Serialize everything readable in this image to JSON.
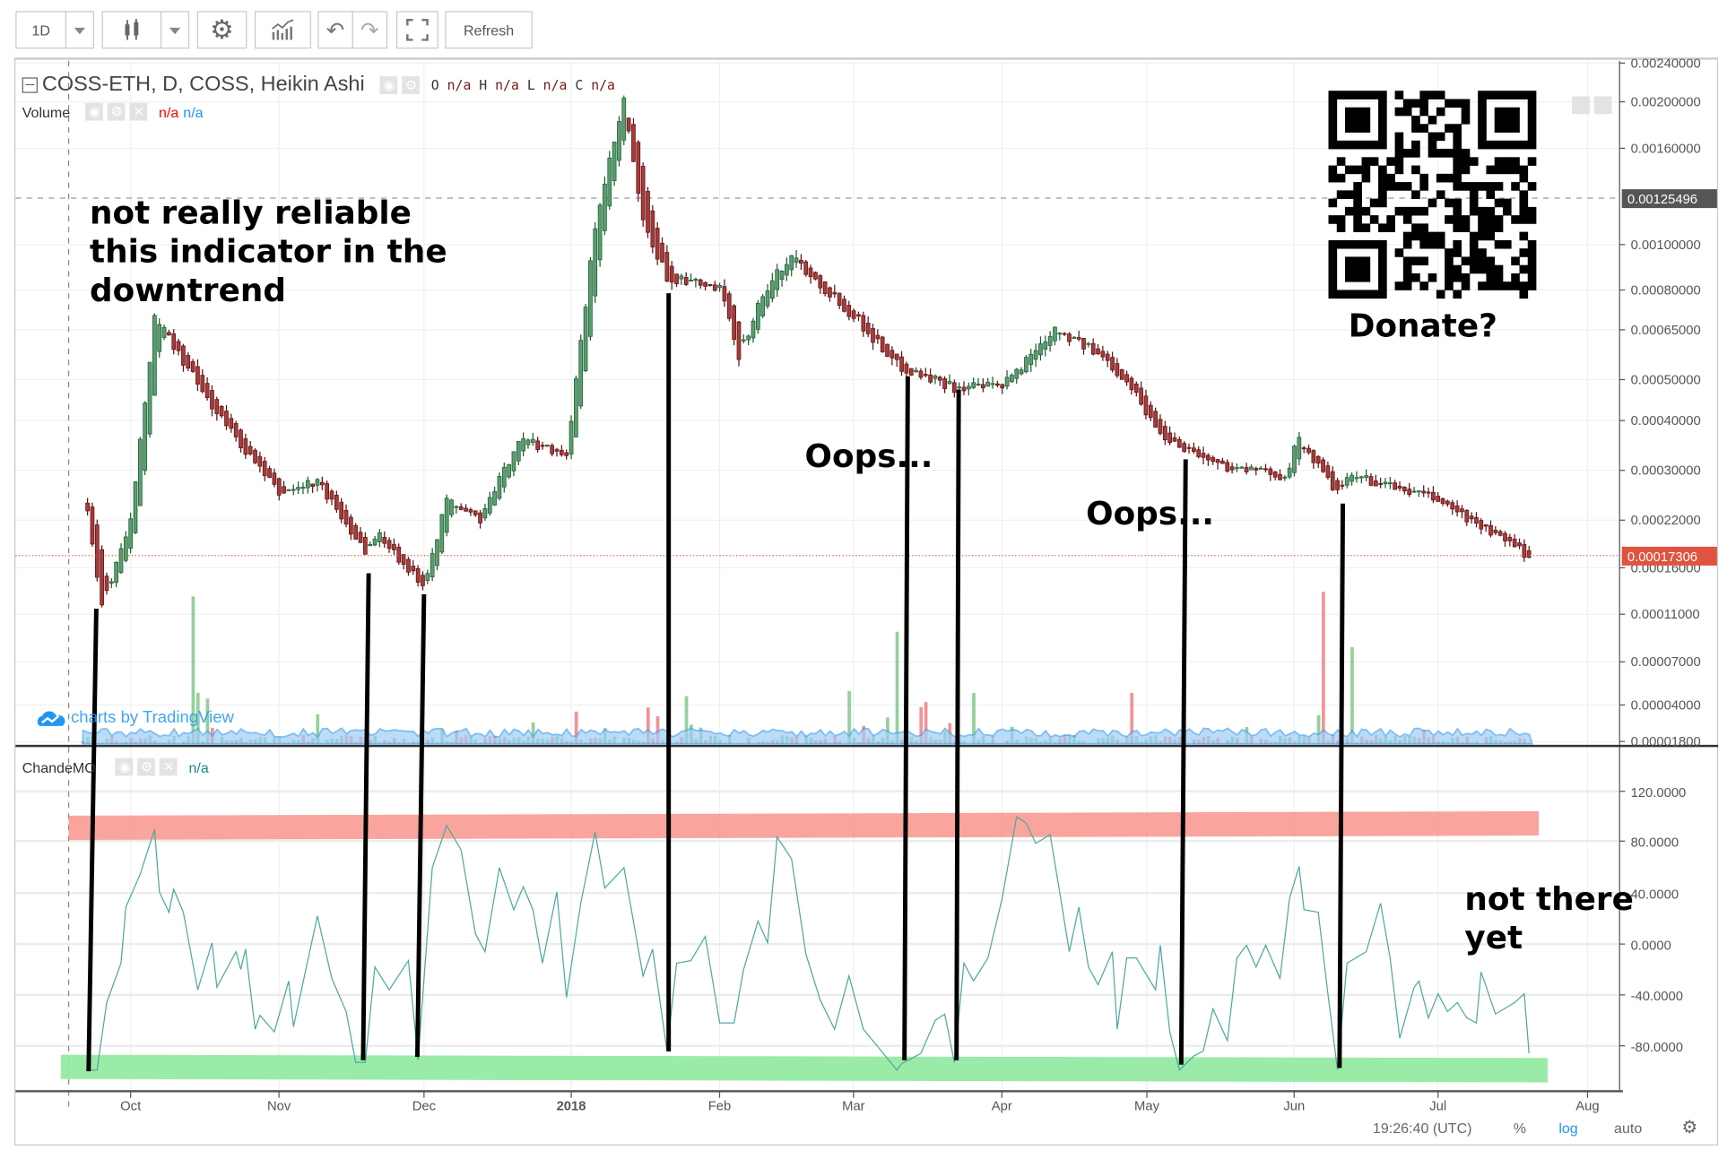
{
  "toolbar": {
    "interval": "1D",
    "refresh_label": "Refresh",
    "icons": [
      "chevron-down-icon",
      "candles-icon",
      "chevron-down-icon",
      "gear-icon",
      "indicators-icon",
      "undo-icon",
      "redo-icon",
      "fullscreen-icon"
    ]
  },
  "legend": {
    "main_title": "COSS-ETH, D, COSS, Heikin Ashi",
    "ohlc": [
      {
        "k": "O",
        "v": "n/a"
      },
      {
        "k": "H",
        "v": "n/a"
      },
      {
        "k": "L",
        "v": "n/a"
      },
      {
        "k": "C",
        "v": "n/a"
      }
    ],
    "volume_label": "Volume",
    "volume_v1": "n/a",
    "volume_v2": "n/a",
    "cmo_label": "ChandeMO",
    "cmo_value": "n/a"
  },
  "watermark": "charts by TradingView",
  "annotations": {
    "note_1": [
      "not really reliable",
      "this indicator in the",
      "downtrend"
    ],
    "oops_1": "Oops...",
    "oops_2": "Oops...",
    "note_2": [
      "not there",
      "yet"
    ],
    "donate": "Donate?"
  },
  "bottom_bar": {
    "time": "19:26:40 (UTC)",
    "percent": "%",
    "log": "log",
    "auto": "auto"
  },
  "colors": {
    "up": "#5a9e6f",
    "down": "#a83a3a",
    "cmo_line": "#4fa8a0",
    "overbought_band": "#f88e86",
    "oversold_band": "#8fe99f",
    "last_price": "#e0533f",
    "accent": "#2196f3"
  },
  "chart_data": [
    {
      "type": "candlestick",
      "style": "Heikin Ashi",
      "symbol": "COSS-ETH",
      "scale": "log",
      "price_axis": {
        "ticks": [
          "0.00240000",
          "0.00200000",
          "0.00160000",
          "0.00100000",
          "0.00080000",
          "0.00065000",
          "0.00050000",
          "0.00040000",
          "0.00030000",
          "0.00022000",
          "0.00016000",
          "0.00011000",
          "0.00007000",
          "0.00004000",
          "0.00001800"
        ],
        "highlight_price": "0.00125496",
        "last_price": "0.00017306"
      },
      "time_axis": [
        "Oct",
        "Nov",
        "Dec",
        "2018",
        "Feb",
        "Mar",
        "Apr",
        "May",
        "Jun",
        "Jul",
        "Aug"
      ],
      "close": [
        [
          "2017-09-22",
          0.00024
        ],
        [
          "2017-09-25",
          0.00012
        ],
        [
          "2017-10-01",
          0.00022
        ],
        [
          "2017-10-06",
          0.0007
        ],
        [
          "2017-10-09",
          0.00062
        ],
        [
          "2017-10-17",
          0.00045
        ],
        [
          "2017-11-01",
          0.00026
        ],
        [
          "2017-11-09",
          0.00028
        ],
        [
          "2017-11-19",
          0.00018
        ],
        [
          "2017-11-22",
          0.0002
        ],
        [
          "2017-12-01",
          0.00014
        ],
        [
          "2017-12-06",
          0.00025
        ],
        [
          "2017-12-13",
          0.00022
        ],
        [
          "2017-12-21",
          0.00036
        ],
        [
          "2017-12-31",
          0.00033
        ],
        [
          "2018-01-06",
          0.0011
        ],
        [
          "2018-01-12",
          0.002
        ],
        [
          "2018-01-16",
          0.0011
        ],
        [
          "2018-01-21",
          0.00085
        ],
        [
          "2018-02-01",
          0.0008
        ],
        [
          "2018-02-05",
          0.00057
        ],
        [
          "2018-02-10",
          0.00078
        ],
        [
          "2018-02-16",
          0.00095
        ],
        [
          "2018-03-01",
          0.0007
        ],
        [
          "2018-03-10",
          0.00054
        ],
        [
          "2018-03-22",
          0.00048
        ],
        [
          "2018-04-01",
          0.00048
        ],
        [
          "2018-04-12",
          0.00066
        ],
        [
          "2018-04-23",
          0.00055
        ],
        [
          "2018-04-27",
          0.0005
        ],
        [
          "2018-05-04",
          0.00037
        ],
        [
          "2018-05-16",
          0.00031
        ],
        [
          "2018-05-30",
          0.00029
        ],
        [
          "2018-06-02",
          0.00036
        ],
        [
          "2018-06-10",
          0.00026
        ],
        [
          "2018-06-13",
          0.00029
        ],
        [
          "2018-07-01",
          0.00025
        ],
        [
          "2018-07-20",
          0.00017306
        ]
      ]
    },
    {
      "type": "line",
      "name": "ChandeMO",
      "y_ticks": [
        "120.0000",
        "80.0000",
        "40.0000",
        "0.0000",
        "-40.0000",
        "-80.0000"
      ],
      "overbought_band": [
        85,
        100
      ],
      "oversold_band": [
        -110,
        -95
      ],
      "points": [
        [
          "2017-09-22",
          -99
        ],
        [
          "2017-09-24",
          -99
        ],
        [
          "2017-09-26",
          -46
        ],
        [
          "2017-09-29",
          -15
        ],
        [
          "2017-09-30",
          29
        ],
        [
          "2017-10-03",
          55
        ],
        [
          "2017-10-06",
          90
        ],
        [
          "2017-10-07",
          41
        ],
        [
          "2017-10-09",
          25
        ],
        [
          "2017-10-10",
          43
        ],
        [
          "2017-10-12",
          25
        ],
        [
          "2017-10-15",
          -36
        ],
        [
          "2017-10-18",
          1
        ],
        [
          "2017-10-19",
          -34
        ],
        [
          "2017-10-23",
          -6
        ],
        [
          "2017-10-24",
          -20
        ],
        [
          "2017-10-25",
          -4
        ],
        [
          "2017-10-27",
          -67
        ],
        [
          "2017-10-28",
          -56
        ],
        [
          "2017-10-31",
          -69
        ],
        [
          "2017-11-03",
          -29
        ],
        [
          "2017-11-04",
          -65
        ],
        [
          "2017-11-09",
          22
        ],
        [
          "2017-11-12",
          -27
        ],
        [
          "2017-11-15",
          -53
        ],
        [
          "2017-11-17",
          -93
        ],
        [
          "2017-11-19",
          -93
        ],
        [
          "2017-11-21",
          -18
        ],
        [
          "2017-11-24",
          -36
        ],
        [
          "2017-11-28",
          -13
        ],
        [
          "2017-11-30",
          -91
        ],
        [
          "2017-12-03",
          60
        ],
        [
          "2017-12-06",
          93
        ],
        [
          "2017-12-09",
          74
        ],
        [
          "2017-12-12",
          8
        ],
        [
          "2017-12-14",
          -6
        ],
        [
          "2017-12-17",
          60
        ],
        [
          "2017-12-20",
          27
        ],
        [
          "2017-12-22",
          45
        ],
        [
          "2017-12-24",
          27
        ],
        [
          "2017-12-26",
          -15
        ],
        [
          "2017-12-29",
          41
        ],
        [
          "2017-12-31",
          -42
        ],
        [
          "2018-01-03",
          32
        ],
        [
          "2018-01-06",
          88
        ],
        [
          "2018-01-08",
          44
        ],
        [
          "2018-01-12",
          60
        ],
        [
          "2018-01-16",
          -25
        ],
        [
          "2018-01-18",
          -4
        ],
        [
          "2018-01-21",
          -84
        ],
        [
          "2018-01-23",
          -15
        ],
        [
          "2018-01-26",
          -13
        ],
        [
          "2018-01-29",
          6
        ],
        [
          "2018-02-01",
          -62
        ],
        [
          "2018-02-04",
          -62
        ],
        [
          "2018-02-06",
          -20
        ],
        [
          "2018-02-09",
          18
        ],
        [
          "2018-02-11",
          1
        ],
        [
          "2018-02-13",
          84
        ],
        [
          "2018-02-16",
          67
        ],
        [
          "2018-02-19",
          -8
        ],
        [
          "2018-02-22",
          -44
        ],
        [
          "2018-02-25",
          -67
        ],
        [
          "2018-02-28",
          -25
        ],
        [
          "2018-03-03",
          -67
        ],
        [
          "2018-03-05",
          -76
        ],
        [
          "2018-03-10",
          -99
        ],
        [
          "2018-03-11",
          -94
        ],
        [
          "2018-03-15",
          -86
        ],
        [
          "2018-03-18",
          -60
        ],
        [
          "2018-03-20",
          -55
        ],
        [
          "2018-03-22",
          -93
        ],
        [
          "2018-03-24",
          -15
        ],
        [
          "2018-03-26",
          -29
        ],
        [
          "2018-03-29",
          -11
        ],
        [
          "2018-04-01",
          36
        ],
        [
          "2018-04-04",
          100
        ],
        [
          "2018-04-06",
          95
        ],
        [
          "2018-04-08",
          79
        ],
        [
          "2018-04-11",
          86
        ],
        [
          "2018-04-13",
          41
        ],
        [
          "2018-04-15",
          -6
        ],
        [
          "2018-04-17",
          29
        ],
        [
          "2018-04-19",
          -18
        ],
        [
          "2018-04-21",
          -32
        ],
        [
          "2018-04-24",
          -6
        ],
        [
          "2018-04-25",
          -67
        ],
        [
          "2018-04-27",
          -11
        ],
        [
          "2018-04-29",
          -11
        ],
        [
          "2018-05-03",
          -36
        ],
        [
          "2018-05-04",
          -1
        ],
        [
          "2018-05-06",
          -69
        ],
        [
          "2018-05-08",
          -99
        ],
        [
          "2018-05-11",
          -88
        ],
        [
          "2018-05-13",
          -84
        ],
        [
          "2018-05-15",
          -51
        ],
        [
          "2018-05-18",
          -76
        ],
        [
          "2018-05-20",
          -11
        ],
        [
          "2018-05-22",
          -1
        ],
        [
          "2018-05-24",
          -18
        ],
        [
          "2018-05-26",
          -1
        ],
        [
          "2018-05-29",
          -27
        ],
        [
          "2018-05-31",
          36
        ],
        [
          "2018-06-02",
          61
        ],
        [
          "2018-06-03",
          27
        ],
        [
          "2018-06-06",
          25
        ],
        [
          "2018-06-08",
          -39
        ],
        [
          "2018-06-10",
          -99
        ],
        [
          "2018-06-12",
          -15
        ],
        [
          "2018-06-16",
          -6
        ],
        [
          "2018-06-19",
          32
        ],
        [
          "2018-06-21",
          -11
        ],
        [
          "2018-06-23",
          -74
        ],
        [
          "2018-06-26",
          -34
        ],
        [
          "2018-06-27",
          -29
        ],
        [
          "2018-06-29",
          -58
        ],
        [
          "2018-07-01",
          -39
        ],
        [
          "2018-07-03",
          -53
        ],
        [
          "2018-07-05",
          -46
        ],
        [
          "2018-07-07",
          -58
        ],
        [
          "2018-07-09",
          -62
        ],
        [
          "2018-07-10",
          -22
        ],
        [
          "2018-07-13",
          -55
        ],
        [
          "2018-07-17",
          -46
        ],
        [
          "2018-07-19",
          -39
        ],
        [
          "2018-07-20",
          -86
        ]
      ]
    }
  ]
}
